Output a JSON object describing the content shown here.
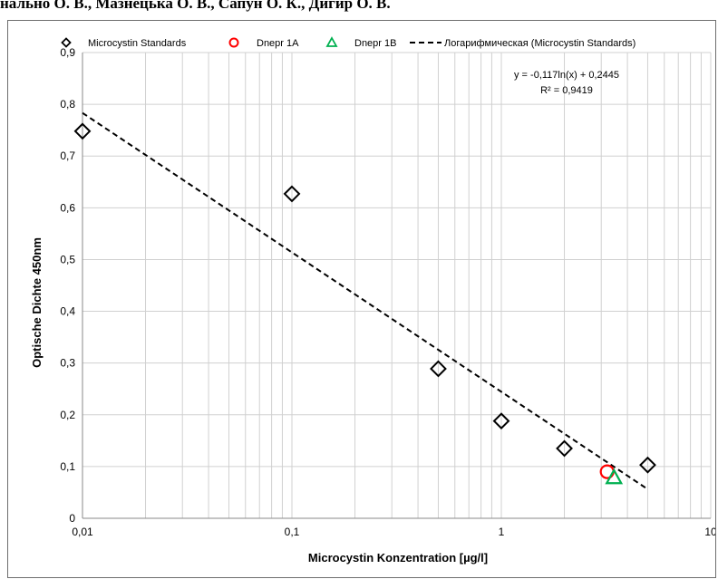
{
  "page": {
    "top_text": "нально О. В., Мазнецька О. В., Сапун О. К., Дигир О. В."
  },
  "chart_data": {
    "type": "scatter",
    "title": "",
    "xlabel": "Microcystin Konzentration [µg/l]",
    "ylabel": "Optische Dichte 450nm",
    "xscale": "log",
    "xlim": [
      0.01,
      10
    ],
    "ylim": [
      0,
      0.9
    ],
    "x_ticks": [
      0.01,
      0.1,
      1,
      10
    ],
    "x_tick_labels": [
      "0,01",
      "0,1",
      "1",
      "10"
    ],
    "y_ticks": [
      0,
      0.1,
      0.2,
      0.3,
      0.4,
      0.5,
      0.6,
      0.7,
      0.8,
      0.9
    ],
    "y_tick_labels": [
      "0",
      "0,1",
      "0,2",
      "0,3",
      "0,4",
      "0,5",
      "0,6",
      "0,7",
      "0,8",
      "0,9"
    ],
    "grid": true,
    "legend_position": "top",
    "series": [
      {
        "name": "Microcystin Standards",
        "marker": "diamond",
        "color": "#000000",
        "x": [
          0.01,
          0.1,
          0.5,
          1,
          2,
          5
        ],
        "y": [
          0.748,
          0.627,
          0.289,
          0.188,
          0.135,
          0.103
        ]
      },
      {
        "name": "Dnepr 1A",
        "marker": "circle",
        "color": "#ff0000",
        "x": [
          3.2
        ],
        "y": [
          0.09
        ]
      },
      {
        "name": "Dnepr 1B",
        "marker": "triangle",
        "color": "#00b050",
        "x": [
          3.45
        ],
        "y": [
          0.079
        ]
      }
    ],
    "trendline": {
      "name": "Логарифмическая (Microcystin Standards)",
      "style": "dashed",
      "color": "#000000",
      "a": -0.117,
      "b": 0.2445,
      "x_range": [
        0.01,
        5
      ],
      "equation": "y = -0,117ln(x) + 0,2445",
      "r2": "R² = 0,9419"
    }
  }
}
